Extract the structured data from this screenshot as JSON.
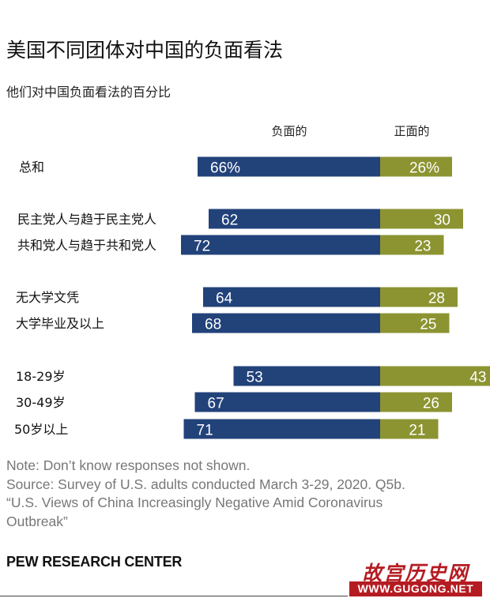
{
  "chart_data": {
    "type": "bar",
    "title": "美国不同团体对中国的负面看法",
    "subtitle": "他们对中国负面看法的百分比",
    "series": [
      {
        "name": "负面的",
        "color": "#22427a",
        "values": [
          66,
          62,
          72,
          64,
          68,
          53,
          67,
          71
        ],
        "labels": [
          "66%",
          "62",
          "72",
          "64",
          "68",
          "53",
          "67",
          "71"
        ]
      },
      {
        "name": "正面的",
        "color": "#8c9432",
        "values": [
          26,
          30,
          23,
          28,
          25,
          43,
          26,
          21
        ],
        "labels": [
          "26%",
          "30",
          "23",
          "28",
          "25",
          "43",
          "26",
          "21"
        ]
      }
    ],
    "categories": [
      "总和",
      "民主党人与趋于民主党人",
      "共和党人与趋于共和党人",
      "无大学文凭",
      "大学毕业及以上",
      "18-29岁",
      "30-49岁",
      "50岁以上"
    ],
    "layout": "diverging"
  },
  "notes": {
    "note": "Note: Don’t know responses not shown.",
    "source": "Source: Survey of U.S. adults conducted March 3-29, 2020. Q5b.",
    "report_line1": "“U.S. Views of China Increasingly Negative Amid Coronavirus",
    "report_line2": "Outbreak”"
  },
  "brand": "PEW RESEARCH CENTER",
  "watermark": {
    "title": "故宫历史网",
    "url": "WWW.GUGONG.NET"
  }
}
